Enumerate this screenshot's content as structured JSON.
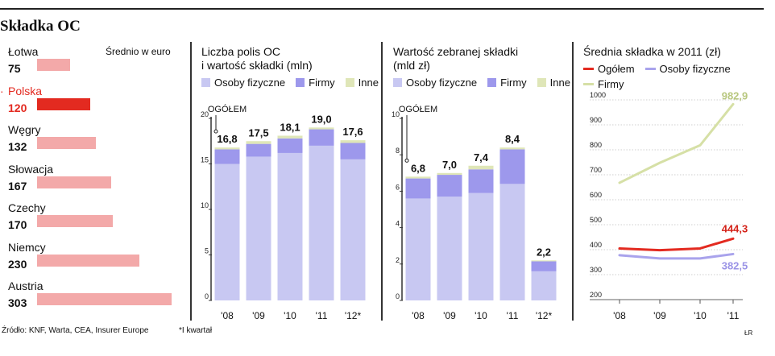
{
  "title": "Składka OC",
  "colors": {
    "osoby": "#c8c8f2",
    "firmy": "#9d98ec",
    "inne": "#dfe6b8",
    "country_bar": "#f3a9a9",
    "poland_bar": "#e32a20",
    "poland_text": "#e32a20",
    "line_ogolem": "#e32a20",
    "line_osoby": "#a9a3ec",
    "line_firmy": "#d6e0a6"
  },
  "footer": {
    "source": "Źródło: KNF, Warta, CEA, Insurer Europe",
    "note": "*I kwartał",
    "credit": "ŁR"
  },
  "chart_data": [
    {
      "type": "bar",
      "title": "",
      "unit_label": "Średnio w euro",
      "categories": [
        "Łotwa",
        "Polska",
        "Węgry",
        "Słowacja",
        "Czechy",
        "Niemcy",
        "Austria"
      ],
      "values": [
        75,
        120,
        132,
        167,
        170,
        230,
        303
      ],
      "value_labels": [
        "75",
        "120",
        "132",
        "167",
        "170",
        "230",
        "303"
      ],
      "highlight": "Polska",
      "xlim": [
        0,
        303
      ]
    },
    {
      "type": "bar",
      "title": "Liczba polis OC i wartość składki (mln)",
      "title_lines": [
        "Liczba polis OC",
        "i wartość składki (mln)"
      ],
      "legend": [
        "Osoby fizyczne",
        "Firmy",
        "Inne"
      ],
      "categories": [
        "'08",
        "'09",
        "'10",
        "'11",
        "'12*"
      ],
      "series": [
        {
          "name": "Osoby fizyczne",
          "values": [
            15.0,
            15.8,
            16.2,
            17.0,
            15.5
          ]
        },
        {
          "name": "Firmy",
          "values": [
            1.6,
            1.4,
            1.6,
            1.8,
            1.8
          ]
        },
        {
          "name": "Inne",
          "values": [
            0.2,
            0.3,
            0.3,
            0.2,
            0.3
          ]
        }
      ],
      "totals": [
        16.8,
        17.5,
        18.1,
        19.0,
        17.6
      ],
      "total_labels": [
        "16,8",
        "17,5",
        "18,1",
        "19,0",
        "17,6"
      ],
      "annotation": "OGÓŁEM",
      "yticks": [
        0,
        5,
        10,
        15,
        20
      ],
      "ylim": [
        0,
        20
      ]
    },
    {
      "type": "bar",
      "title": "Wartość zebranej składki (mld zł)",
      "title_lines": [
        "Wartość zebranej składki",
        "(mld zł)"
      ],
      "legend": [
        "Osoby fizyczne",
        "Firmy",
        "Inne"
      ],
      "categories": [
        "'08",
        "'09",
        "'10",
        "'11",
        "'12*"
      ],
      "series": [
        {
          "name": "Osoby fizyczne",
          "values": [
            5.6,
            5.7,
            5.9,
            6.4,
            1.6
          ]
        },
        {
          "name": "Firmy",
          "values": [
            1.1,
            1.2,
            1.3,
            1.9,
            0.55
          ]
        },
        {
          "name": "Inne",
          "values": [
            0.1,
            0.1,
            0.2,
            0.1,
            0.05
          ]
        }
      ],
      "totals": [
        6.8,
        7.0,
        7.4,
        8.4,
        2.2
      ],
      "total_labels": [
        "6,8",
        "7,0",
        "7,4",
        "8,4",
        "2,2"
      ],
      "annotation": "OGÓŁEM",
      "yticks": [
        0,
        2,
        4,
        6,
        8,
        10
      ],
      "ylim": [
        0,
        10
      ]
    },
    {
      "type": "line",
      "title": "Średnia składka w 2011 (zł)",
      "title_lines": [
        "Średnia składka w 2011 (zł)"
      ],
      "categories": [
        "'08",
        "'09",
        "'10",
        "'11"
      ],
      "series": [
        {
          "name": "Ogółem",
          "values": [
            405,
            398,
            405,
            444.3
          ]
        },
        {
          "name": "Osoby fizyczne",
          "values": [
            378,
            365,
            365,
            382.5
          ]
        },
        {
          "name": "Firmy",
          "values": [
            668,
            748,
            818,
            982.9
          ]
        }
      ],
      "end_labels": [
        "444,3",
        "382,5",
        "982,9"
      ],
      "yticks": [
        200,
        300,
        400,
        500,
        600,
        700,
        800,
        900,
        1000
      ],
      "ylim": [
        200,
        1000
      ]
    }
  ]
}
